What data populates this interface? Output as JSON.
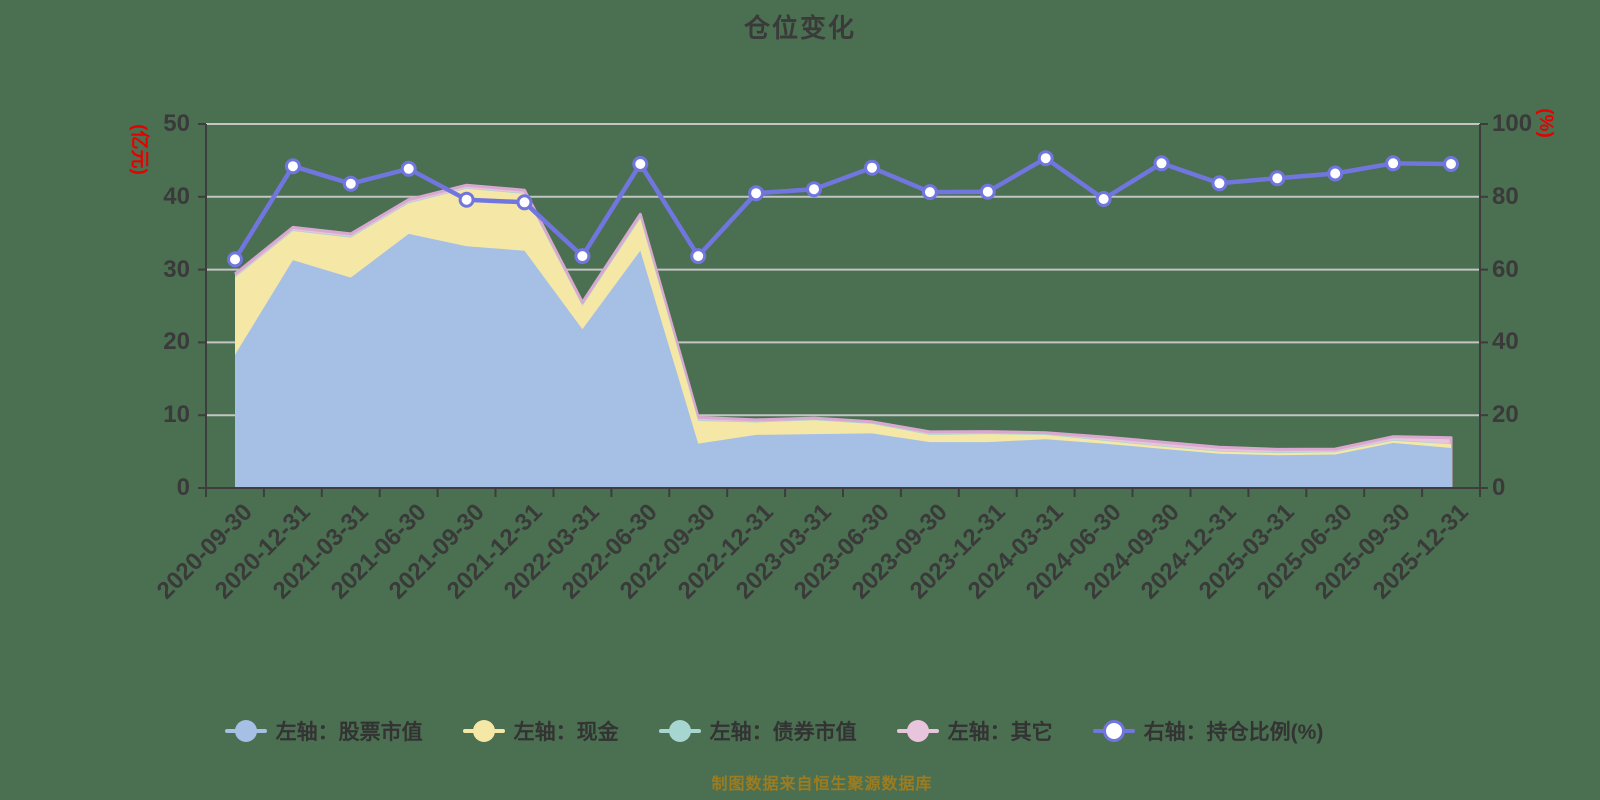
{
  "page": {
    "background": "#4b6f51"
  },
  "chart_data": {
    "type": "area",
    "title": "仓位变化",
    "source_note": "制图数据来自恒生聚源数据库",
    "legend_position": "bottom",
    "grid": true,
    "gridline_color": "#cfcfcf",
    "axis_line_color": "#3d3d3d",
    "text_color": "#3a3a3a",
    "left_axis": {
      "name": "(亿元)",
      "name_color": "#e60000",
      "min": 0,
      "max": 50,
      "ticks": [
        0,
        10,
        20,
        30,
        40,
        50
      ]
    },
    "right_axis": {
      "name": "(%)",
      "name_color": "#e60000",
      "min": 0,
      "max": 100,
      "ticks": [
        0,
        20,
        40,
        60,
        80,
        100
      ]
    },
    "categories": [
      "2020-09-30",
      "2020-12-31",
      "2021-03-31",
      "2021-06-30",
      "2021-09-30",
      "2021-12-31",
      "2022-03-31",
      "2022-06-30",
      "2022-09-30",
      "2022-12-31",
      "2023-03-31",
      "2023-06-30",
      "2023-09-30",
      "2023-12-31",
      "2024-03-31",
      "2024-06-30",
      "2024-09-30",
      "2024-12-31",
      "2025-03-31",
      "2025-06-30",
      "2025-09-30",
      "2025-12-31"
    ],
    "series": [
      {
        "name": "左轴：股票市值",
        "type": "area",
        "axis": "left",
        "color": "#a5bfe5",
        "values": [
          18.3,
          31.3,
          28.9,
          34.9,
          33.2,
          32.6,
          21.8,
          32.6,
          6.1,
          7.3,
          7.4,
          7.5,
          6.3,
          6.3,
          6.7,
          6.1,
          5.4,
          4.7,
          4.5,
          4.6,
          6.2,
          5.5
        ]
      },
      {
        "name": "左轴：现金",
        "type": "area",
        "axis": "left",
        "color": "#f5e7a6",
        "values": [
          10.6,
          4.0,
          5.5,
          4.2,
          7.9,
          7.8,
          3.2,
          4.4,
          3.1,
          1.7,
          1.9,
          1.3,
          1.0,
          1.1,
          0.6,
          0.4,
          0.3,
          0.3,
          0.3,
          0.3,
          0.3,
          0.5
        ]
      },
      {
        "name": "左轴：债券市值",
        "type": "area",
        "axis": "left",
        "color": "#a7d6d0",
        "values": [
          0.1,
          0.1,
          0.1,
          0.1,
          0.1,
          0.1,
          0.1,
          0.2,
          0.1,
          0.1,
          0.1,
          0.1,
          0.1,
          0.1,
          0.1,
          0.1,
          0.1,
          0.1,
          0.1,
          0.1,
          0.1,
          0.1
        ]
      },
      {
        "name": "左轴：其它",
        "type": "area",
        "axis": "left",
        "color": "#e9c4dd",
        "stroke": "#d9a8d0",
        "values": [
          0.4,
          0.4,
          0.4,
          0.4,
          0.4,
          0.4,
          0.4,
          0.4,
          0.4,
          0.25,
          0.2,
          0.2,
          0.3,
          0.25,
          0.2,
          0.4,
          0.5,
          0.5,
          0.4,
          0.35,
          0.45,
          0.8
        ]
      },
      {
        "name": "右轴：持仓比例(%)",
        "type": "line",
        "axis": "right",
        "color": "#7176de",
        "marker_fill": "#ffffff",
        "values": [
          62.8,
          88.4,
          83.6,
          87.7,
          79.2,
          78.5,
          63.7,
          89.0,
          63.7,
          81.0,
          82.1,
          88.0,
          81.3,
          81.4,
          90.6,
          79.4,
          89.2,
          83.7,
          85.1,
          86.4,
          89.2,
          89.0
        ]
      }
    ]
  }
}
